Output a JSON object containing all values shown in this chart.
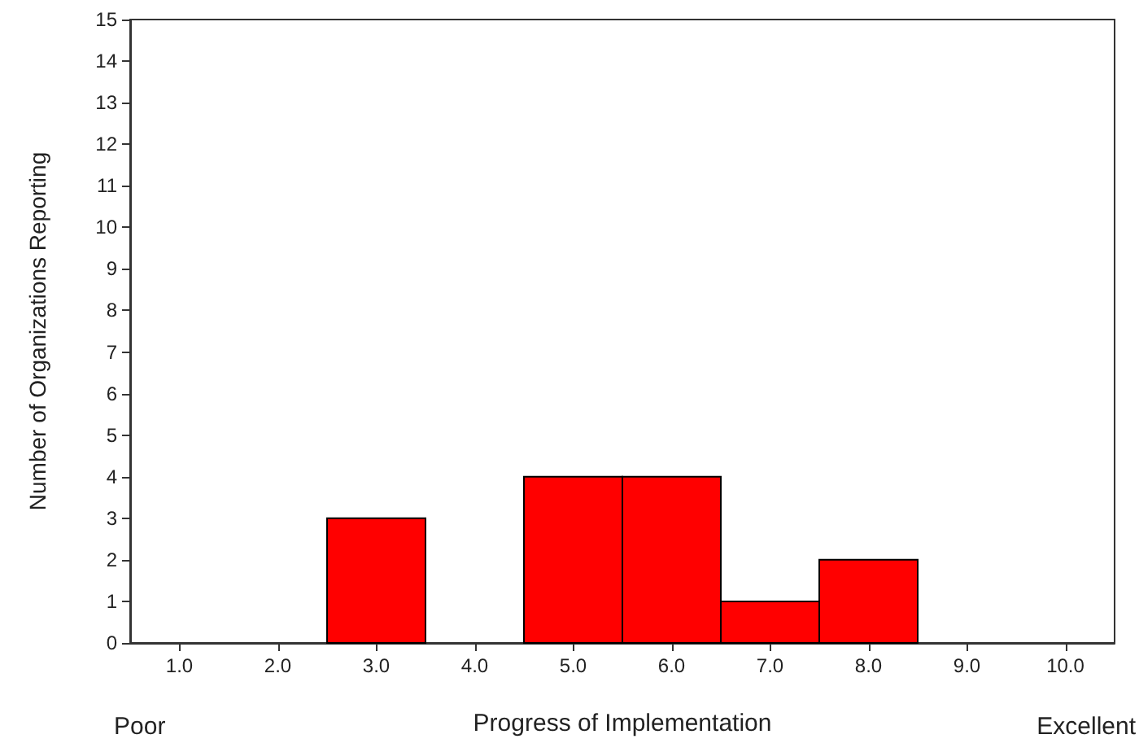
{
  "chart_data": {
    "type": "histogram",
    "xlabel": "Progress of Implementation",
    "ylabel": "Number of Organizations Reporting",
    "bins": [
      0.5,
      1.5,
      2.5,
      3.5,
      4.5,
      5.5,
      6.5,
      7.5,
      8.5,
      9.5,
      10.5
    ],
    "values": [
      0,
      0,
      3,
      0,
      4,
      4,
      1,
      2,
      0,
      0
    ],
    "color": "#ff0000",
    "xlim": [
      0.5,
      10.5
    ],
    "xticks": [
      {
        "value": 1,
        "label": "1.0"
      },
      {
        "value": 2,
        "label": "2.0"
      },
      {
        "value": 3,
        "label": "3.0"
      },
      {
        "value": 4,
        "label": "4.0"
      },
      {
        "value": 5,
        "label": "5.0"
      },
      {
        "value": 6,
        "label": "6.0"
      },
      {
        "value": 7,
        "label": "7.0"
      },
      {
        "value": 8,
        "label": "8.0"
      },
      {
        "value": 9,
        "label": "9.0"
      },
      {
        "value": 10,
        "label": "10.0"
      }
    ],
    "ylim": [
      0,
      15
    ],
    "yticks": [
      0,
      1,
      2,
      3,
      4,
      5,
      6,
      7,
      8,
      9,
      10,
      11,
      12,
      13,
      14,
      15
    ],
    "grid": false,
    "annotations": [
      "Poor",
      "Excellent"
    ]
  }
}
